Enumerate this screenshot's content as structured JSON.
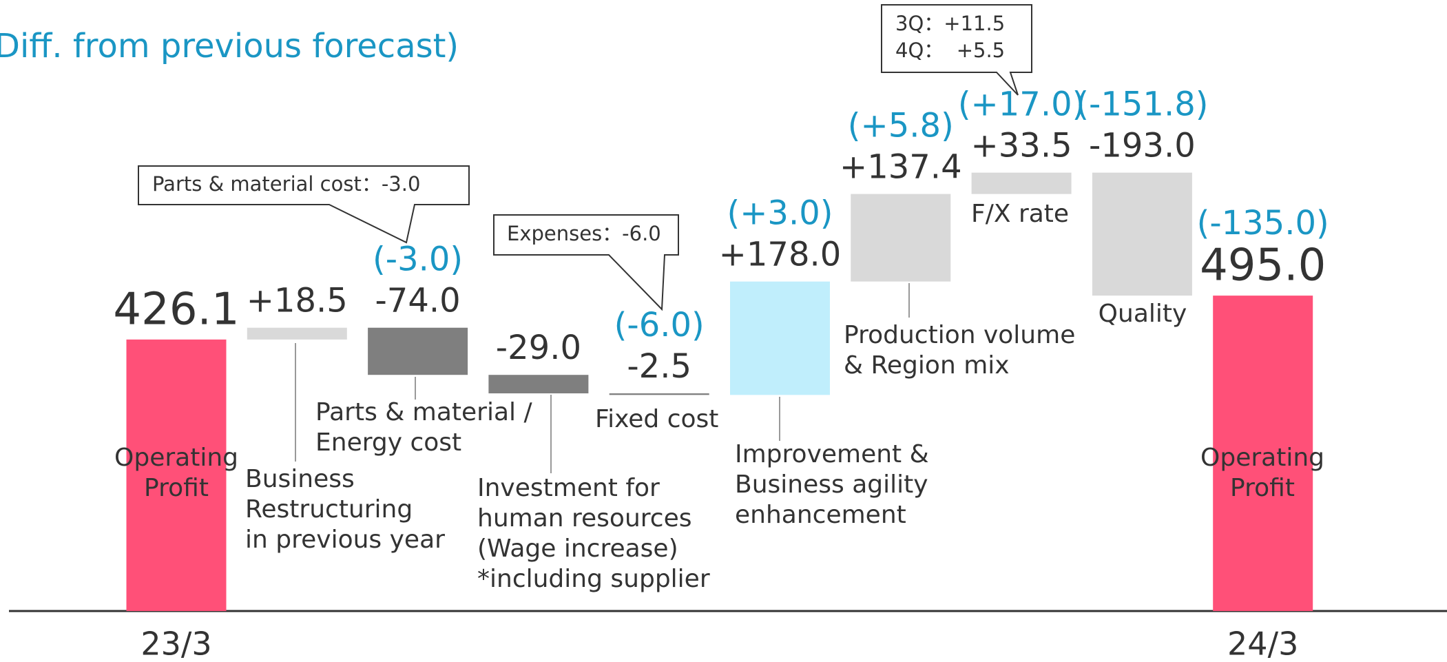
{
  "chart_data": {
    "type": "waterfall",
    "title": "Diff. from previous forecast)",
    "categories": [
      [
        "Operating",
        "Profit"
      ],
      [
        "Business",
        "Restructuring",
        "in previous year"
      ],
      [
        "Parts & material /",
        "Energy cost"
      ],
      [
        "Investment for",
        "human resources",
        "(Wage increase)",
        "*including supplier"
      ],
      [
        "Fixed cost"
      ],
      [
        "Improvement &",
        "Business agility",
        "enhancement"
      ],
      [
        "Production volume",
        "& Region mix"
      ],
      [
        "F/X rate"
      ],
      [
        "Quality"
      ],
      [
        "Operating",
        "Profit"
      ]
    ],
    "values": [
      426.1,
      18.5,
      -74.0,
      -29.0,
      -2.5,
      178.0,
      137.4,
      33.5,
      -193.0,
      495.0
    ],
    "value_labels": [
      "426.1",
      "+18.5",
      "-74.0",
      "-29.0",
      "-2.5",
      "+178.0",
      "+137.4",
      "+33.5",
      "-193.0",
      "495.0"
    ],
    "diff_labels": [
      null,
      null,
      "(-3.0)",
      null,
      "(-6.0)",
      "(+3.0)",
      "(+5.8)",
      "(+17.0)",
      "(-151.8)",
      "(-135.0)"
    ],
    "is_total": [
      true,
      false,
      false,
      false,
      false,
      false,
      false,
      false,
      false,
      true
    ],
    "colors": [
      "#ff5078",
      "#d9d9d9",
      "#7f7f7f",
      "#7f7f7f",
      "#7f7f7f",
      "#c0eefc",
      "#d9d9d9",
      "#d9d9d9",
      "#d9d9d9",
      "#ff5078"
    ],
    "period_labels": [
      "23/3",
      "24/3"
    ],
    "annotations": [
      [
        "Parts & material cost：-3.0"
      ],
      [
        "Expenses：-6.0"
      ],
      [
        "3Q：+11.5",
        "4Q：  +5.5"
      ]
    ]
  }
}
